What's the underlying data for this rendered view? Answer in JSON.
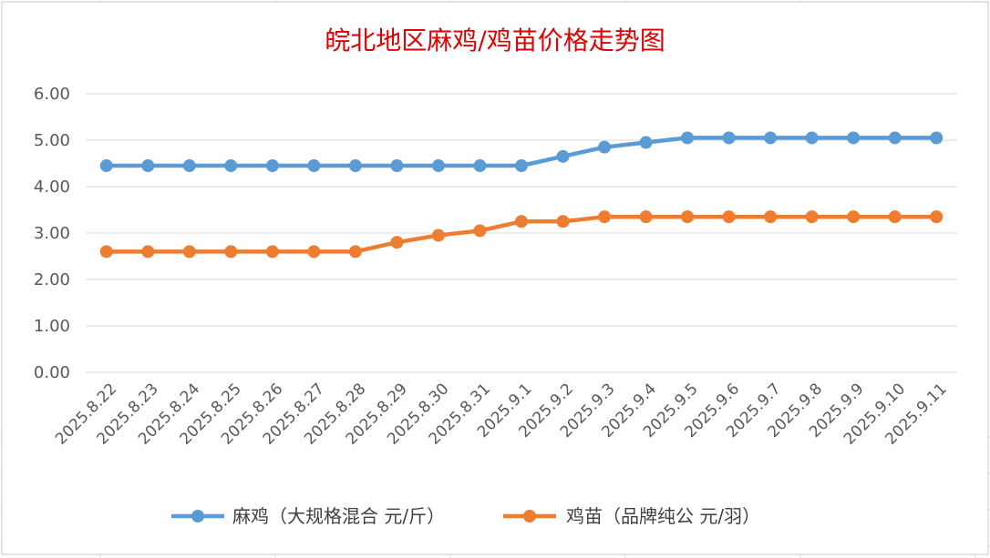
{
  "chart_data": {
    "type": "line",
    "title": "皖北地区麻鸡/鸡苗价格走势图",
    "categories": [
      "2025.8.22",
      "2025.8.23",
      "2025.8.24",
      "2025.8.25",
      "2025.8.26",
      "2025.8.27",
      "2025.8.28",
      "2025.8.29",
      "2025.8.30",
      "2025.8.31",
      "2025.9.1",
      "2025.9.2",
      "2025.9.3",
      "2025.9.4",
      "2025.9.5",
      "2025.9.6",
      "2025.9.7",
      "2025.9.8",
      "2025.9.9",
      "2025.9.10",
      "2025.9.11"
    ],
    "y_ticks": [
      "0.00",
      "1.00",
      "2.00",
      "3.00",
      "4.00",
      "5.00",
      "6.00"
    ],
    "ylim": [
      0,
      6
    ],
    "grid": true,
    "legend_position": "bottom",
    "series": [
      {
        "name": "麻鸡（大规格混合 元/斤）",
        "color": "#5b9bd5",
        "values": [
          4.45,
          4.45,
          4.45,
          4.45,
          4.45,
          4.45,
          4.45,
          4.45,
          4.45,
          4.45,
          4.45,
          4.65,
          4.85,
          4.95,
          5.05,
          5.05,
          5.05,
          5.05,
          5.05,
          5.05,
          5.05
        ]
      },
      {
        "name": "鸡苗（品牌纯公 元/羽）",
        "color": "#ed7d31",
        "values": [
          2.6,
          2.6,
          2.6,
          2.6,
          2.6,
          2.6,
          2.6,
          2.8,
          2.95,
          3.05,
          3.25,
          3.25,
          3.35,
          3.35,
          3.35,
          3.35,
          3.35,
          3.35,
          3.35,
          3.35,
          3.35
        ]
      }
    ]
  }
}
